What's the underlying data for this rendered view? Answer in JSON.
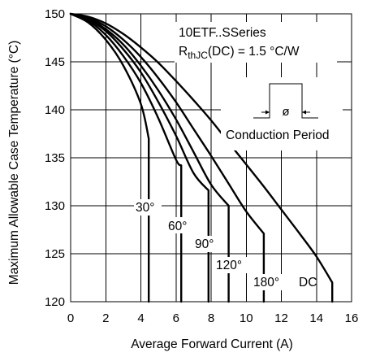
{
  "chart_data": {
    "type": "line",
    "title_lines": [
      "10ETF..SSeries"
    ],
    "rthjc_prefix": "R",
    "rthjc_sub": "thJC",
    "rthjc_suffix": "(DC) = 1.5 °C/W",
    "inset_label": "Conduction Period",
    "inset_symbol": "ø",
    "xlabel": "Average Forward Current (A)",
    "ylabel": "Maximum Allowable Case Temperature (°C)",
    "xlim": [
      0,
      16
    ],
    "ylim": [
      120,
      150
    ],
    "x_ticks": [
      0,
      2,
      4,
      6,
      8,
      10,
      12,
      14,
      16
    ],
    "y_ticks": [
      120,
      125,
      130,
      135,
      140,
      145,
      150
    ],
    "grid": true,
    "series": [
      {
        "name": "30°",
        "points": [
          [
            0,
            150
          ],
          [
            1,
            149.1
          ],
          [
            2,
            147.3
          ],
          [
            3,
            144.6
          ],
          [
            4,
            140.6
          ],
          [
            4.45,
            137
          ]
        ],
        "drop_to": 120
      },
      {
        "name": "60°",
        "points": [
          [
            0,
            150
          ],
          [
            1,
            149.3
          ],
          [
            2,
            147.8
          ],
          [
            3,
            145.6
          ],
          [
            4,
            142.8
          ],
          [
            5,
            139.1
          ],
          [
            6,
            134.8
          ],
          [
            6.3,
            134.2
          ]
        ],
        "drop_to": 120
      },
      {
        "name": "90°",
        "points": [
          [
            0,
            150
          ],
          [
            1,
            149.4
          ],
          [
            2,
            148.2
          ],
          [
            3,
            146.3
          ],
          [
            4,
            143.9
          ],
          [
            5,
            140.8
          ],
          [
            6,
            137.3
          ],
          [
            7,
            133.4
          ],
          [
            7.85,
            131.6
          ]
        ],
        "drop_to": 120
      },
      {
        "name": "120°",
        "points": [
          [
            0,
            150
          ],
          [
            1,
            149.5
          ],
          [
            2,
            148.4
          ],
          [
            3,
            146.8
          ],
          [
            4,
            144.6
          ],
          [
            5,
            142
          ],
          [
            6,
            139
          ],
          [
            7,
            135.6
          ],
          [
            8,
            132.2
          ],
          [
            9,
            130
          ]
        ],
        "drop_to": 120
      },
      {
        "name": "180°",
        "points": [
          [
            0,
            150
          ],
          [
            1,
            149.6
          ],
          [
            2,
            148.7
          ],
          [
            3,
            147.3
          ],
          [
            4,
            145.5
          ],
          [
            5,
            143.3
          ],
          [
            6,
            140.8
          ],
          [
            7,
            138
          ],
          [
            8,
            135.2
          ],
          [
            9,
            132.3
          ],
          [
            10,
            129.4
          ],
          [
            11,
            127.1
          ]
        ],
        "drop_to": 120
      },
      {
        "name": "DC",
        "points": [
          [
            0,
            150
          ],
          [
            1,
            149.7
          ],
          [
            2,
            149
          ],
          [
            3,
            147.9
          ],
          [
            4,
            146.5
          ],
          [
            5,
            144.9
          ],
          [
            6,
            143
          ],
          [
            7,
            141
          ],
          [
            8,
            138.9
          ],
          [
            9,
            136.6
          ],
          [
            10,
            134.3
          ],
          [
            11,
            132
          ],
          [
            12,
            129.6
          ],
          [
            13,
            127.2
          ],
          [
            14,
            124.7
          ],
          [
            14.9,
            122
          ]
        ],
        "drop_to": 120
      }
    ]
  }
}
